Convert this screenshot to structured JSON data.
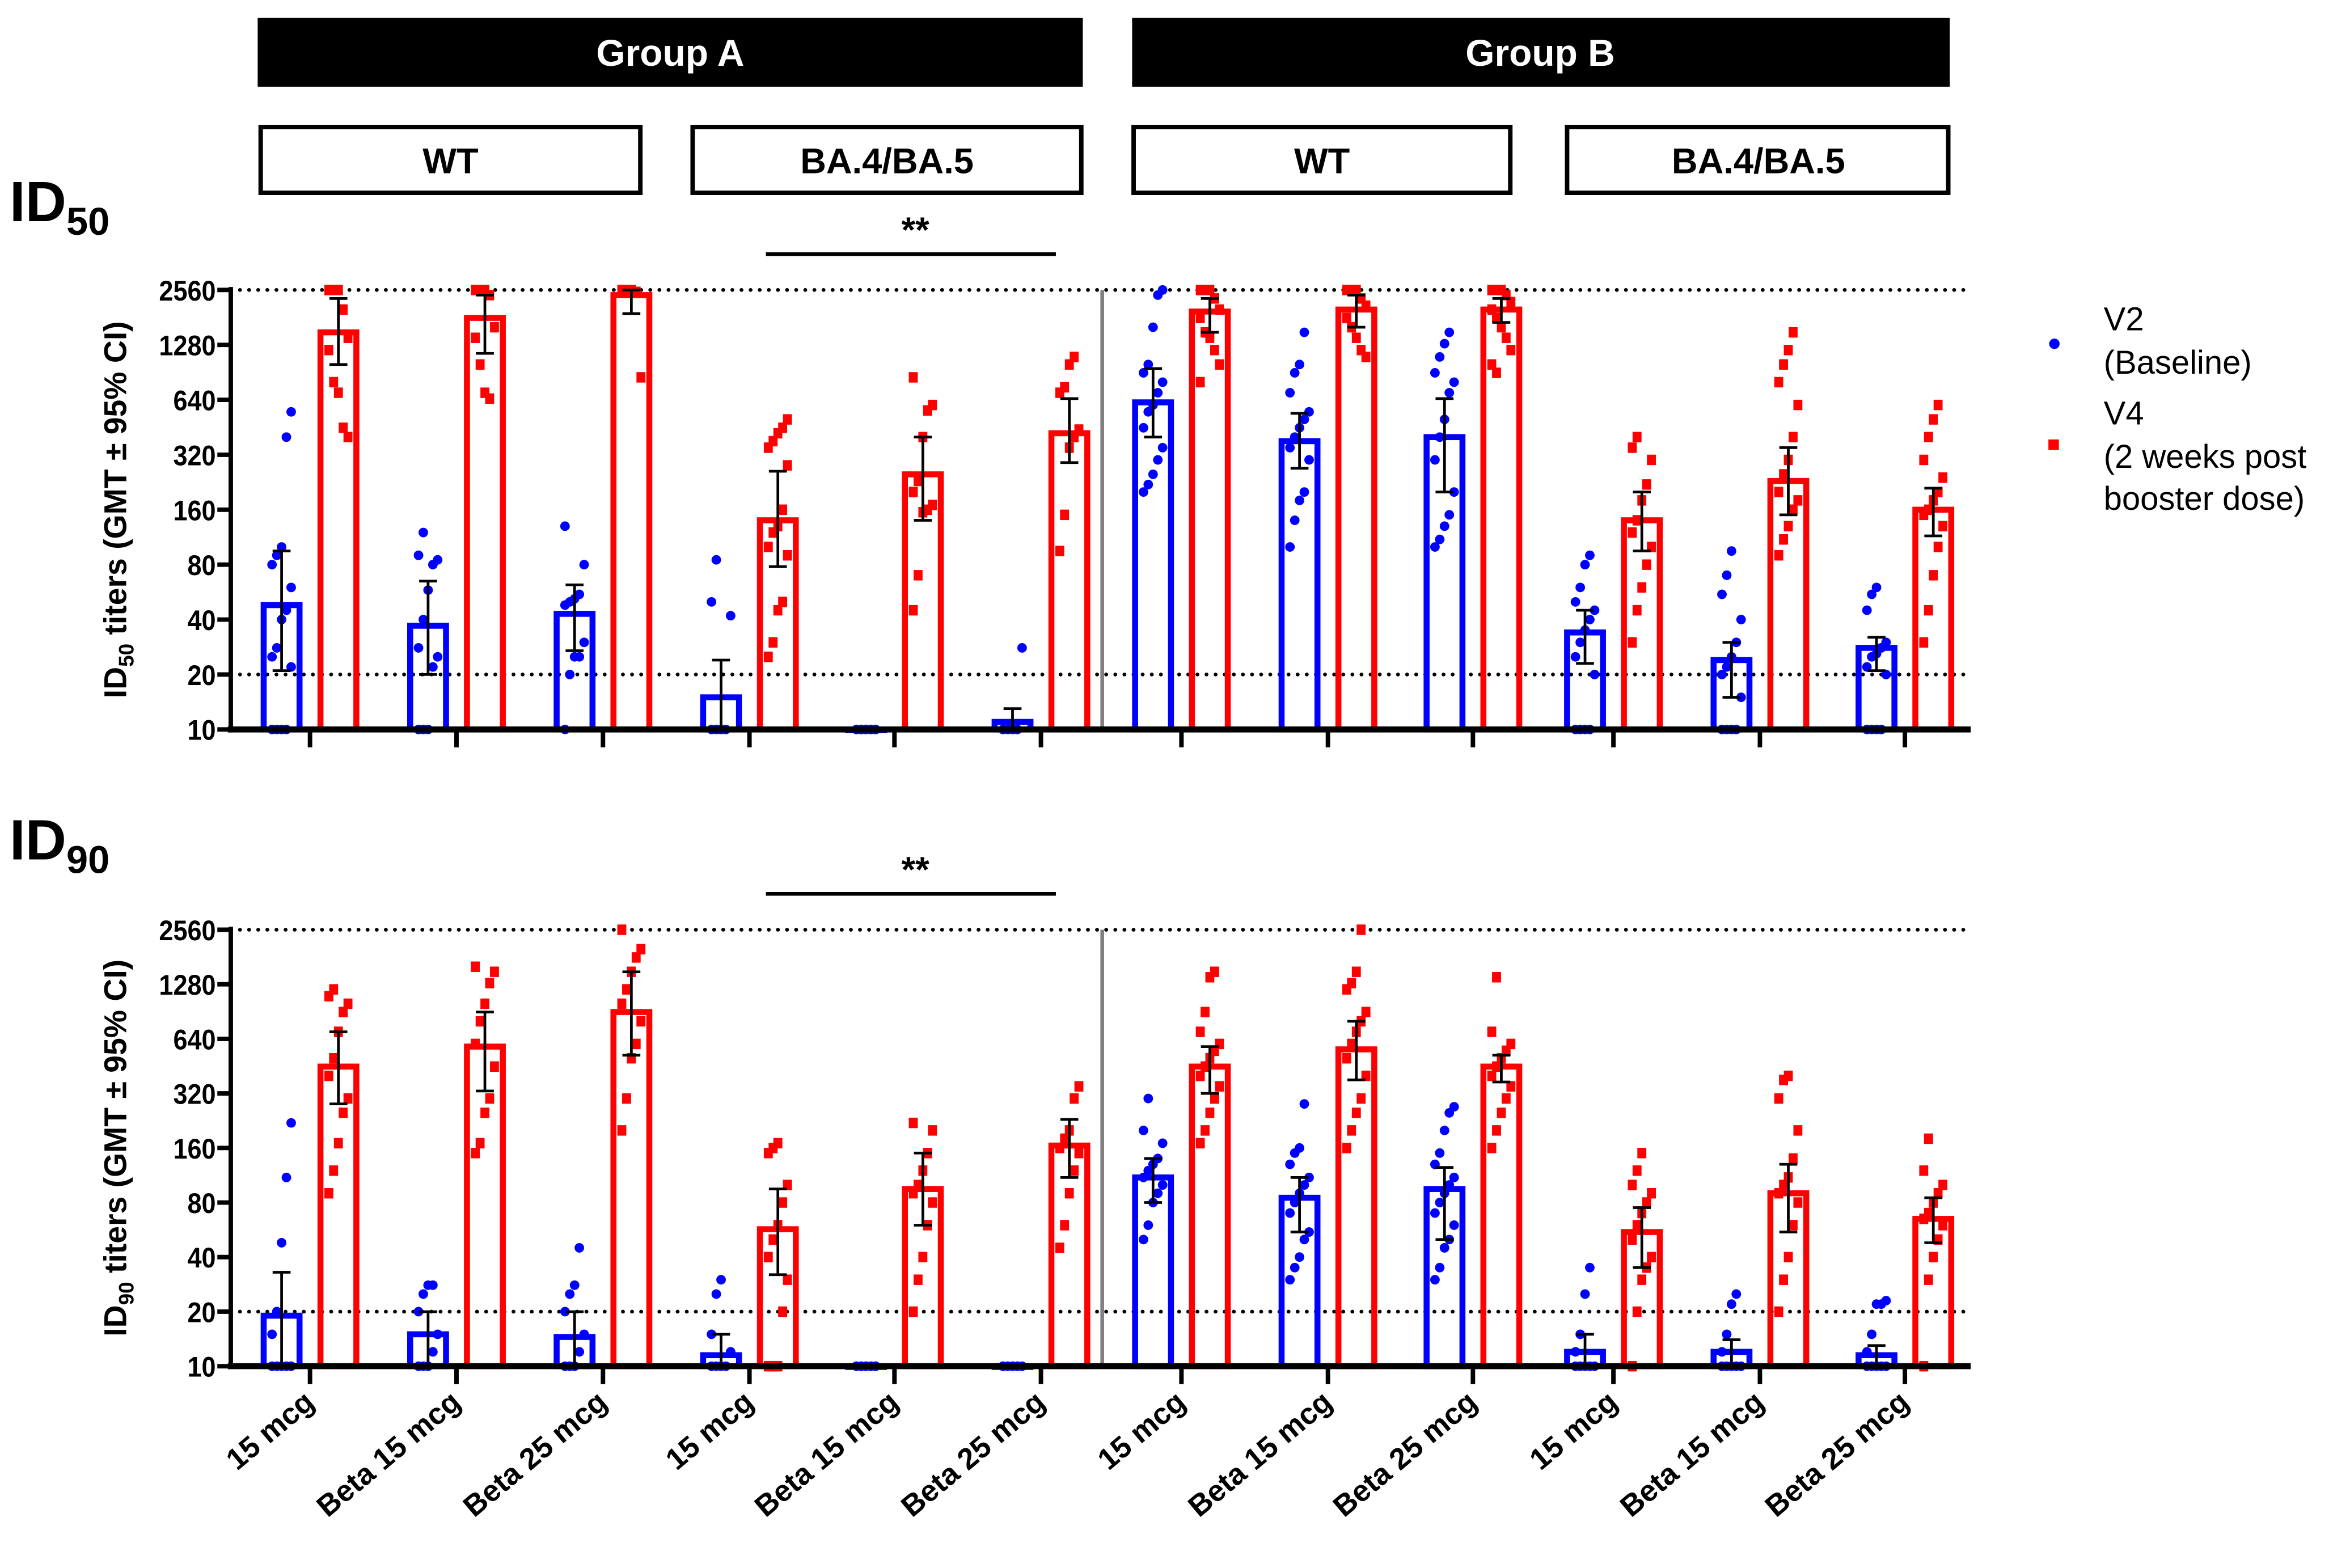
{
  "header": {
    "groups": [
      "Group A",
      "Group B"
    ],
    "subgroups": [
      "WT",
      "BA.4/BA.5",
      "WT",
      "BA.4/BA.5"
    ]
  },
  "colors": {
    "v2": "#0000ff",
    "v4": "#ff0000",
    "divider": "#808080",
    "text": "#000000"
  },
  "chart_data": [
    {
      "type": "bar",
      "panel_title": "ID",
      "panel_sub": "50",
      "ylabel_pre": "ID",
      "ylabel_sub": "50",
      "ylabel_post": " titers (GMT ± 95% CI)",
      "yscale": "log2",
      "ylim": [
        10,
        2560
      ],
      "yticks": [
        "10",
        "20",
        "40",
        "80",
        "160",
        "320",
        "640",
        "1280",
        "2560"
      ],
      "reference_lines": [
        20,
        2560
      ],
      "significance": "**",
      "categories": [
        "15 mcg",
        "Beta 15 mcg",
        "Beta 25 mcg",
        "15 mcg",
        "Beta 15 mcg",
        "Beta 25 mcg",
        "15 mcg",
        "Beta 15 mcg",
        "Beta 25 mcg",
        "15 mcg",
        "Beta 15 mcg",
        "Beta 25 mcg"
      ],
      "series": [
        {
          "name": "V2 (Baseline)",
          "gmt": [
            48,
            37,
            43,
            15,
            10,
            11,
            620,
            380,
            400,
            34,
            24,
            28
          ],
          "ci": [
            [
              21,
              95
            ],
            [
              20,
              65
            ],
            [
              27,
              62
            ],
            [
              10,
              24
            ],
            [
              10,
              10
            ],
            [
              10,
              13
            ],
            [
              400,
              950
            ],
            [
              270,
              540
            ],
            [
              200,
              650
            ],
            [
              23,
              45
            ],
            [
              15,
              30
            ],
            [
              21,
              32
            ]
          ],
          "points": [
            [
              10,
              10,
              10,
              10,
              22,
              25,
              28,
              40,
              45,
              60,
              80,
              90,
              100,
              400,
              550
            ],
            [
              10,
              10,
              10,
              22,
              25,
              28,
              40,
              58,
              80,
              85,
              90,
              120
            ],
            [
              10,
              20,
              25,
              25,
              30,
              48,
              50,
              52,
              55,
              80,
              130
            ],
            [
              10,
              10,
              10,
              10,
              42,
              50,
              85
            ],
            [
              10,
              10,
              10,
              10,
              10,
              10,
              10,
              10,
              10,
              10
            ],
            [
              10,
              10,
              10,
              10,
              28
            ],
            [
              200,
              220,
              250,
              300,
              350,
              450,
              550,
              600,
              700,
              800,
              900,
              1000,
              1600,
              2400,
              2560
            ],
            [
              100,
              140,
              180,
              200,
              300,
              350,
              400,
              450,
              500,
              550,
              700,
              900,
              1000,
              1500
            ],
            [
              100,
              110,
              130,
              150,
              200,
              300,
              400,
              500,
              700,
              800,
              900,
              1100,
              1300,
              1500
            ],
            [
              10,
              10,
              10,
              10,
              20,
              25,
              30,
              35,
              40,
              45,
              50,
              60,
              80,
              90
            ],
            [
              10,
              10,
              10,
              10,
              15,
              20,
              22,
              25,
              30,
              40,
              55,
              70,
              95
            ],
            [
              10,
              10,
              10,
              10,
              20,
              22,
              25,
              26,
              28,
              30,
              45,
              55,
              60
            ]
          ]
        },
        {
          "name": "V4 (2 weeks post booster dose)",
          "gmt": [
            1500,
            1800,
            2400,
            140,
            250,
            420,
            1950,
            2000,
            2000,
            140,
            230,
            160
          ],
          "ci": [
            [
              1000,
              2300
            ],
            [
              1150,
              2400
            ],
            [
              1900,
              2560
            ],
            [
              78,
              260
            ],
            [
              140,
              400
            ],
            [
              290,
              650
            ],
            [
              1500,
              2300
            ],
            [
              1600,
              2400
            ],
            [
              1700,
              2300
            ],
            [
              95,
              200
            ],
            [
              150,
              350
            ],
            [
              115,
              210
            ]
          ],
          "points": [
            [
              2560,
              2560,
              2560,
              2000,
              1400,
              1200,
              800,
              700,
              450,
              400
            ],
            [
              2560,
              2560,
              2560,
              2400,
              1600,
              1400,
              1000,
              700,
              650
            ],
            [
              2560,
              2560,
              2560,
              2500,
              850
            ],
            [
              25,
              30,
              45,
              50,
              90,
              100,
              120,
              130,
              160,
              280,
              350,
              380,
              420,
              450,
              500
            ],
            [
              45,
              70,
              155,
              160,
              170,
              200,
              230,
              400,
              560,
              600,
              850
            ],
            [
              95,
              150,
              350,
              400,
              440,
              700,
              750,
              1000,
              1100
            ],
            [
              2560,
              2560,
              2560,
              2300,
              2000,
              1800,
              1500,
              1400,
              1200,
              1000,
              800
            ],
            [
              2560,
              2560,
              2560,
              2300,
              2100,
              1800,
              1600,
              1400,
              1200,
              1100
            ],
            [
              2560,
              2560,
              2560,
              2400,
              2200,
              2000,
              1800,
              1600,
              1400,
              1200,
              1000,
              900
            ],
            [
              30,
              45,
              60,
              80,
              100,
              120,
              140,
              180,
              220,
              300,
              350,
              400
            ],
            [
              90,
              110,
              130,
              160,
              180,
              200,
              250,
              300,
              400,
              600,
              800,
              1000,
              1200,
              1500
            ],
            [
              30,
              45,
              70,
              100,
              130,
              150,
              160,
              180,
              200,
              240,
              300,
              400,
              500,
              600
            ]
          ]
        }
      ]
    },
    {
      "type": "bar",
      "panel_title": "ID",
      "panel_sub": "90",
      "ylabel_pre": "ID",
      "ylabel_sub": "90",
      "ylabel_post": " titers (GMT ± 95% CI)",
      "yscale": "log2",
      "ylim": [
        10,
        2560
      ],
      "yticks": [
        "10",
        "20",
        "40",
        "80",
        "160",
        "320",
        "640",
        "1280",
        "2560"
      ],
      "reference_lines": [
        20,
        2560
      ],
      "significance": "**",
      "categories": [
        "15 mcg",
        "Beta 15 mcg",
        "Beta 25 mcg",
        "15 mcg",
        "Beta 15 mcg",
        "Beta 25 mcg",
        "15 mcg",
        "Beta 15 mcg",
        "Beta 25 mcg",
        "15 mcg",
        "Beta 15 mcg",
        "Beta 25 mcg"
      ],
      "series": [
        {
          "name": "V2 (Baseline)",
          "gmt": [
            19,
            15,
            14.5,
            11.5,
            10,
            10,
            110,
            85,
            95,
            12,
            12,
            11.5
          ],
          "ci": [
            [
              10,
              33
            ],
            [
              10,
              20
            ],
            [
              10,
              20
            ],
            [
              10,
              15
            ],
            [
              10,
              10
            ],
            [
              10,
              10
            ],
            [
              80,
              140
            ],
            [
              55,
              110
            ],
            [
              50,
              125
            ],
            [
              10,
              15
            ],
            [
              10,
              14
            ],
            [
              10,
              13
            ]
          ],
          "points": [
            [
              10,
              10,
              10,
              10,
              10,
              15,
              20,
              48,
              110,
              220
            ],
            [
              10,
              10,
              10,
              12,
              15,
              20,
              25,
              28,
              28
            ],
            [
              10,
              10,
              10,
              12,
              15,
              20,
              25,
              28,
              45
            ],
            [
              10,
              10,
              10,
              10,
              12,
              15,
              25,
              30
            ],
            [
              10,
              10,
              10,
              10,
              10,
              10,
              10,
              10,
              10,
              10
            ],
            [
              10,
              10,
              10,
              10,
              10,
              10,
              10,
              10,
              10
            ],
            [
              50,
              60,
              80,
              90,
              100,
              110,
              120,
              130,
              140,
              170,
              200,
              300
            ],
            [
              30,
              35,
              40,
              50,
              55,
              70,
              80,
              90,
              100,
              110,
              130,
              150,
              160,
              280
            ],
            [
              30,
              35,
              45,
              50,
              60,
              70,
              80,
              90,
              100,
              110,
              130,
              150,
              200,
              250,
              270
            ],
            [
              10,
              10,
              10,
              10,
              10,
              12,
              15,
              25,
              35
            ],
            [
              10,
              10,
              10,
              10,
              10,
              12,
              15,
              22,
              25
            ],
            [
              10,
              10,
              10,
              10,
              10,
              12,
              15,
              22,
              22,
              23
            ]
          ]
        },
        {
          "name": "V4 (2 weeks post booster dose)",
          "gmt": [
            450,
            580,
            900,
            57,
            95,
            165,
            450,
            560,
            450,
            55,
            90,
            65
          ],
          "ci": [
            [
              280,
              700
            ],
            [
              330,
              900
            ],
            [
              520,
              1500
            ],
            [
              32,
              95
            ],
            [
              60,
              150
            ],
            [
              110,
              230
            ],
            [
              320,
              580
            ],
            [
              380,
              800
            ],
            [
              370,
              520
            ],
            [
              35,
              75
            ],
            [
              55,
              130
            ],
            [
              48,
              85
            ]
          ],
          "points": [
            [
              90,
              120,
              170,
              250,
              300,
              400,
              500,
              700,
              900,
              1000,
              1100,
              1200
            ],
            [
              150,
              170,
              250,
              300,
              450,
              600,
              800,
              1000,
              1300,
              1500,
              1600
            ],
            [
              200,
              300,
              500,
              600,
              800,
              1000,
              1200,
              1500,
              1800,
              2000,
              2560
            ],
            [
              10,
              10,
              10,
              20,
              30,
              40,
              50,
              60,
              80,
              100,
              150,
              160,
              170
            ],
            [
              20,
              30,
              40,
              60,
              80,
              90,
              100,
              120,
              150,
              200,
              220
            ],
            [
              45,
              60,
              90,
              120,
              150,
              160,
              180,
              200,
              300,
              350
            ],
            [
              170,
              200,
              250,
              300,
              350,
              400,
              450,
              500,
              550,
              600,
              700,
              900,
              1400,
              1500
            ],
            [
              160,
              200,
              250,
              300,
              400,
              500,
              600,
              700,
              800,
              900,
              1200,
              1300,
              1500,
              2560
            ],
            [
              160,
              200,
              250,
              300,
              350,
              400,
              450,
              500,
              550,
              600,
              700,
              1400
            ],
            [
              10,
              20,
              30,
              35,
              40,
              50,
              60,
              70,
              80,
              90,
              100,
              120,
              150
            ],
            [
              20,
              30,
              40,
              60,
              80,
              90,
              100,
              110,
              140,
              200,
              300,
              380,
              400
            ],
            [
              10,
              30,
              40,
              50,
              60,
              65,
              70,
              80,
              90,
              100,
              120,
              180
            ]
          ]
        }
      ]
    }
  ],
  "legend": {
    "v2": [
      "V2",
      "(Baseline)"
    ],
    "v4": [
      "V4",
      "(2 weeks post",
      "booster dose)"
    ]
  }
}
